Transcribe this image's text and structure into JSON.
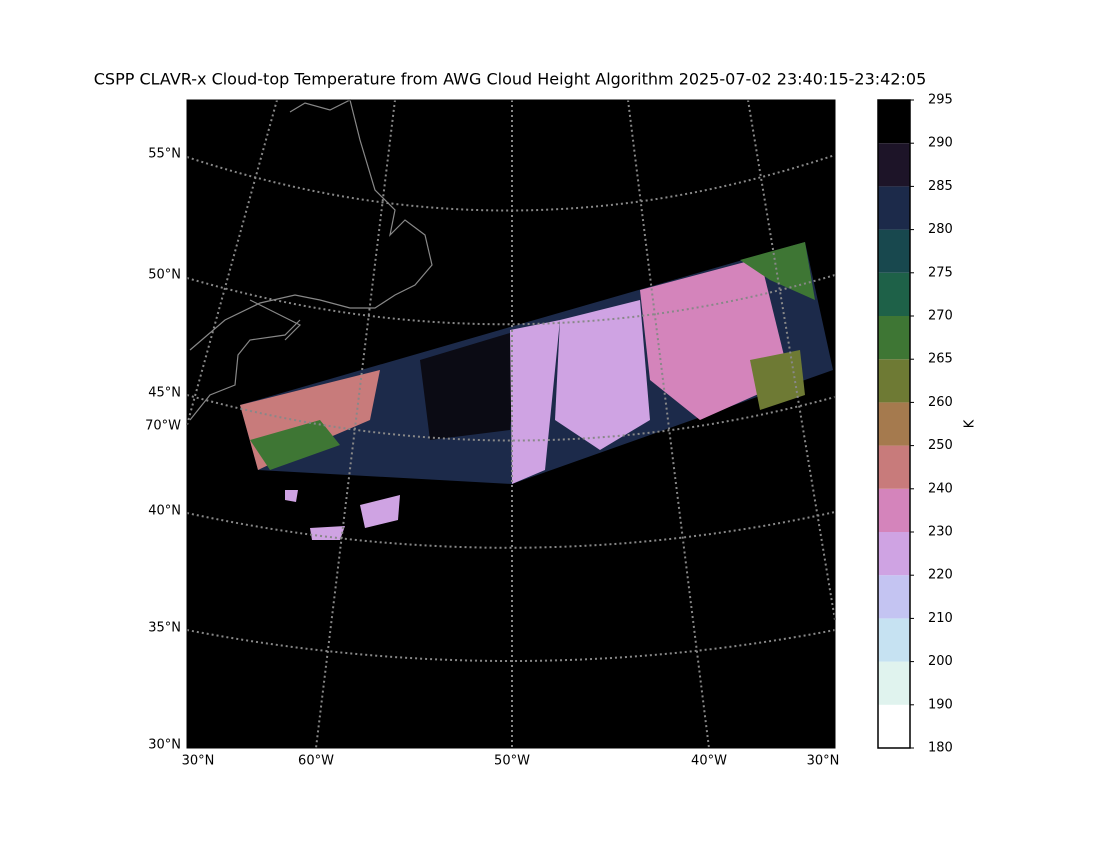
{
  "title": "CSPP CLAVR-x Cloud-top Temperature from AWG Cloud Height Algorithm 2025-07-02 23:40:15-23:42:05",
  "map": {
    "lat_labels": [
      "55°N",
      "50°N",
      "45°N",
      "40°N",
      "35°N",
      "30°N"
    ],
    "left_lon_label": "70°W",
    "bottom_labels": [
      "30°N",
      "60°W",
      "50°W",
      "40°W",
      "30°N"
    ]
  },
  "colorbar": {
    "label": "K",
    "ticks": [
      180,
      190,
      200,
      210,
      220,
      230,
      240,
      250,
      260,
      265,
      270,
      275,
      280,
      285,
      290,
      295
    ],
    "colors": [
      "#ffffff",
      "#e0f3ee",
      "#c6e2f2",
      "#c4c4f2",
      "#cfa3e3",
      "#d484bb",
      "#c87b7b",
      "#a57a4e",
      "#6e7a34",
      "#3e7634",
      "#1e6148",
      "#18484e",
      "#1c2a4a",
      "#1d1428",
      "#000000"
    ]
  }
}
